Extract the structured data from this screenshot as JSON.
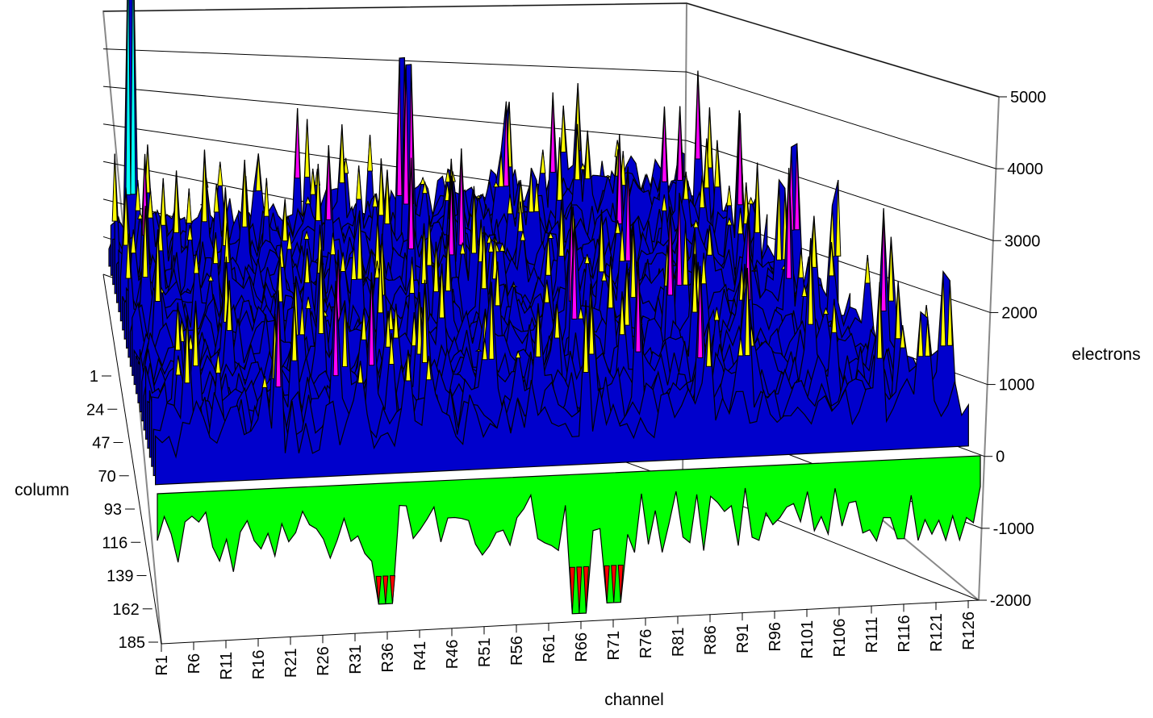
{
  "chart_data": {
    "type": "surface",
    "title": "",
    "xlabel": "channel",
    "ylabel": "column",
    "zlabel": "electrons",
    "x_ticks": [
      "R1",
      "R6",
      "R11",
      "R16",
      "R21",
      "R26",
      "R31",
      "R36",
      "R41",
      "R46",
      "R51",
      "R56",
      "R61",
      "R66",
      "R71",
      "R76",
      "R81",
      "R86",
      "R91",
      "R96",
      "R101",
      "R106",
      "R111",
      "R116",
      "R121",
      "R126"
    ],
    "y_ticks": [
      "1",
      "24",
      "47",
      "70",
      "93",
      "116",
      "139",
      "162",
      "185"
    ],
    "z_ticks": [
      "5000",
      "4000",
      "3000",
      "2000",
      "1000",
      "0",
      "-1000",
      "-2000"
    ],
    "zlim": [
      -2000,
      5000
    ],
    "grid": true,
    "color_bands": [
      {
        "range": [
          -2000,
          -1000
        ],
        "color": "#ff0000"
      },
      {
        "range": [
          -1000,
          0
        ],
        "color": "#00ff00"
      },
      {
        "range": [
          0,
          1000
        ],
        "color": "#0000cc"
      },
      {
        "range": [
          1000,
          2000
        ],
        "color": "#ffff00"
      },
      {
        "range": [
          2000,
          3000
        ],
        "color": "#ff00ff"
      },
      {
        "range": [
          3000,
          4000
        ],
        "color": "#00ffff"
      }
    ],
    "notable_peaks": [
      {
        "channel": "R6",
        "column": "1",
        "value": 4700
      },
      {
        "channel": "R61",
        "column": "24",
        "value": 2900
      },
      {
        "channel": "R71",
        "column": "70",
        "value": 1100
      },
      {
        "channel": "R36",
        "column": "116",
        "value": 1000
      }
    ],
    "notable_troughs": [
      {
        "channel": "R36",
        "column": "185",
        "value": -1300
      },
      {
        "channel": "R66",
        "column": "185",
        "value": -1500
      },
      {
        "channel": "R71",
        "column": "185",
        "value": -1400
      }
    ]
  }
}
